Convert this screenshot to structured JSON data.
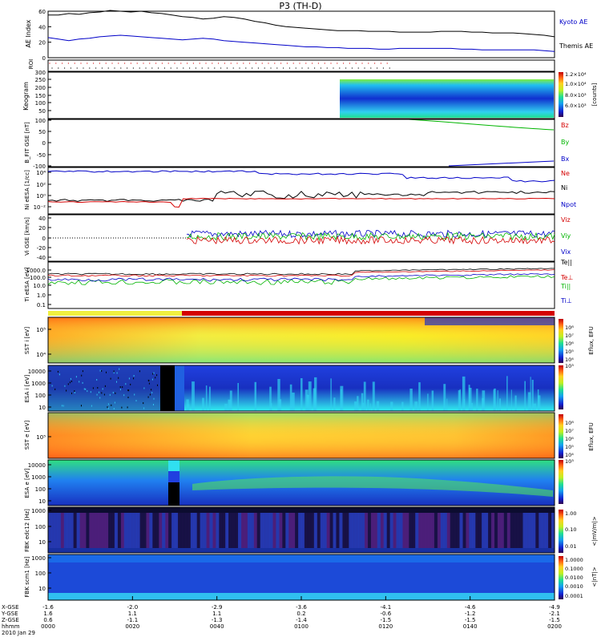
{
  "title": "P3 (TH-D)",
  "date_label": "2010 Jan 29",
  "colors": {
    "kyoto": "#0000c8",
    "themis": "#000000",
    "red": "#d40000",
    "green": "#00b400",
    "blue": "#0000c8",
    "black": "#000000"
  },
  "chart_data": [
    {
      "type": "line",
      "ylabel": "AE Index",
      "ylim": [
        0,
        60
      ],
      "yticks": [
        0,
        20,
        40,
        60
      ],
      "series": [
        {
          "name": "Kyoto AE",
          "color": "#0000c8",
          "values": [
            26,
            24,
            22,
            24,
            25,
            27,
            28,
            29,
            28,
            27,
            26,
            25,
            24,
            23,
            24,
            25,
            24,
            22,
            21,
            20,
            19,
            18,
            17,
            16,
            15,
            14,
            14,
            13,
            13,
            12,
            12,
            12,
            11,
            11,
            12,
            12,
            12,
            12,
            12,
            12,
            11,
            11,
            10,
            10,
            10,
            10,
            10,
            10,
            9,
            8
          ]
        },
        {
          "name": "Themis AE",
          "color": "#000000",
          "values": [
            55,
            55,
            57,
            56,
            58,
            59,
            61,
            60,
            59,
            60,
            58,
            57,
            55,
            53,
            52,
            50,
            51,
            53,
            52,
            50,
            47,
            45,
            42,
            40,
            39,
            38,
            37,
            36,
            35,
            35,
            35,
            34,
            34,
            34,
            33,
            33,
            33,
            33,
            34,
            34,
            34,
            33,
            33,
            32,
            32,
            32,
            31,
            30,
            29,
            27
          ]
        }
      ]
    },
    {
      "type": "scatter",
      "ylabel": "ROI"
    },
    {
      "type": "heatmap",
      "ylabel": "Keogram",
      "ylim": [
        0,
        300
      ],
      "yticks": [
        50,
        100,
        150,
        200,
        250,
        300
      ],
      "colorbar_ticks": [
        "1.2×10⁴",
        "1.0×10⁴",
        "8.0×10³",
        "6.0×10³"
      ],
      "colorbar_label": "[counts]"
    },
    {
      "type": "line",
      "ylabel": "B_FIT GSE [nT]",
      "ylim": [
        -100,
        100
      ],
      "yticks": [
        -100,
        -50,
        0,
        50,
        100
      ],
      "series": [
        {
          "name": "Bz",
          "color": "#d40000"
        },
        {
          "name": "By",
          "color": "#00b400"
        },
        {
          "name": "Bx",
          "color": "#0000c8"
        }
      ]
    },
    {
      "type": "line",
      "ylabel": "Ni eESA [1/cc]",
      "yticks": [
        "10⁻²",
        "10⁰",
        "10²",
        "10⁴"
      ],
      "series": [
        {
          "name": "Ne",
          "color": "#d40000"
        },
        {
          "name": "Ni",
          "color": "#000000"
        },
        {
          "name": "Npot",
          "color": "#0000c8"
        }
      ]
    },
    {
      "type": "line",
      "ylabel": "Vi GSE [km/s]",
      "ylim": [
        -50,
        50
      ],
      "yticks": [
        -40,
        -20,
        0,
        20,
        40
      ],
      "series": [
        {
          "name": "Viz",
          "color": "#d40000"
        },
        {
          "name": "Viy",
          "color": "#00b400"
        },
        {
          "name": "Vix",
          "color": "#0000c8"
        }
      ]
    },
    {
      "type": "line",
      "ylabel": "Ti eESA [eV]",
      "yticks": [
        "0.1",
        "1.0",
        "10.0",
        "100.0",
        "1000.0"
      ],
      "series": [
        {
          "name": "Te||",
          "color": "#000000"
        },
        {
          "name": "Te⊥",
          "color": "#d40000"
        },
        {
          "name": "Ti||",
          "color": "#00b400"
        },
        {
          "name": "Ti⊥",
          "color": "#0000c8"
        }
      ]
    },
    {
      "type": "heatmap",
      "ylabel": "SST i [eV]",
      "yticks": [
        "10⁴",
        "10⁵"
      ],
      "colorbar_ticks": [
        "10⁸",
        "10⁷",
        "10⁶",
        "10⁵",
        "10⁴",
        "10³"
      ],
      "colorbar_label": "Eflux, EFU"
    },
    {
      "type": "heatmap",
      "ylabel": "ESA i [eV]",
      "yticks": [
        "10",
        "100",
        "1000",
        "10000"
      ]
    },
    {
      "type": "heatmap",
      "ylabel": "SST e [eV]",
      "yticks": [
        "10⁵"
      ],
      "colorbar_ticks": [
        "10⁸",
        "10⁷",
        "10⁶",
        "10⁵",
        "10⁴",
        "10³"
      ],
      "colorbar_label": "Eflux, EFU"
    },
    {
      "type": "heatmap",
      "ylabel": "ESA e [eV]",
      "yticks": [
        "10",
        "100",
        "1000",
        "10000"
      ]
    },
    {
      "type": "heatmap",
      "ylabel": "FBK edc12 [Hz]",
      "yticks": [
        "10",
        "100",
        "1000"
      ],
      "colorbar_ticks": [
        "1.00",
        "0.10",
        "0.01"
      ],
      "colorbar_label": "<|mV/m|>"
    },
    {
      "type": "heatmap",
      "ylabel": "FBK scm1 [Hz]",
      "yticks": [
        "10",
        "100",
        "1000"
      ],
      "colorbar_ticks": [
        "1.0000",
        "0.1000",
        "0.0100",
        "0.0010",
        "0.0001"
      ],
      "colorbar_label": "<|nT|>"
    }
  ],
  "axis_rows": {
    "labels": [
      "X-GSE",
      "Y-GSE",
      "Z-GSE",
      "hhmm",
      "2010 Jan 29"
    ],
    "x_gse": [
      "-1.6",
      "-2.0",
      "-2.9",
      "-3.6",
      "-4.1",
      "-4.6",
      "-4.9"
    ],
    "y_gse": [
      "1.6",
      "1.1",
      "1.1",
      "0.2",
      "-0.6",
      "-1.2",
      "-2.1"
    ],
    "z_gse": [
      "0.6",
      "-1.1",
      "-1.3",
      "-1.4",
      "-1.5",
      "-1.5",
      "-1.5"
    ],
    "hhmm": [
      "0000",
      "0020",
      "0040",
      "0100",
      "0120",
      "0140",
      "0200"
    ]
  },
  "legend": {
    "ae": [
      "Kyoto AE",
      "Themis AE"
    ],
    "b": [
      "Bz",
      "By",
      "Bx"
    ],
    "n": [
      "Ne",
      "Ni",
      "Npot"
    ],
    "v": [
      "Viz",
      "Viy",
      "Vix"
    ],
    "t": [
      "Te||",
      "Te⊥",
      "Ti||",
      "Ti⊥"
    ]
  }
}
